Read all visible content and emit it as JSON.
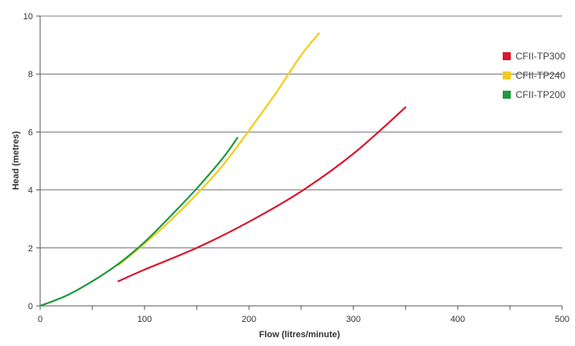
{
  "chart_data": {
    "type": "line",
    "title": "",
    "xlabel": "Flow (litres/minute)",
    "ylabel": "Head (metres)",
    "xlim": [
      0,
      500
    ],
    "ylim": [
      0,
      10
    ],
    "x_ticks": [
      0,
      100,
      200,
      300,
      400,
      500
    ],
    "x_tick_labels": [
      "0",
      "100",
      "200",
      "300",
      "400",
      "500"
    ],
    "x_minor_step": 50,
    "y_ticks": [
      0,
      2,
      4,
      6,
      8,
      10
    ],
    "y_tick_labels": [
      "0",
      "2",
      "4",
      "6",
      "8",
      "10"
    ],
    "grid": "horizontal",
    "legend_position": "right",
    "series": [
      {
        "name": "CFII-TP300",
        "color": "#d7192f",
        "x": [
          75,
          100,
          150,
          200,
          250,
          300,
          350
        ],
        "y": [
          0.85,
          1.25,
          2.0,
          2.9,
          3.95,
          5.25,
          6.85
        ]
      },
      {
        "name": "CFII-TP240",
        "color": "#f2cc1b",
        "x": [
          75,
          100,
          125,
          150,
          175,
          200,
          225,
          250,
          267
        ],
        "y": [
          1.4,
          2.15,
          2.95,
          3.85,
          4.85,
          6.05,
          7.3,
          8.65,
          9.4
        ]
      },
      {
        "name": "CFII-TP200",
        "color": "#1f9a3e",
        "x": [
          0,
          25,
          50,
          75,
          100,
          125,
          150,
          175,
          189
        ],
        "y": [
          0,
          0.35,
          0.85,
          1.45,
          2.2,
          3.1,
          4.05,
          5.1,
          5.8
        ]
      }
    ]
  }
}
